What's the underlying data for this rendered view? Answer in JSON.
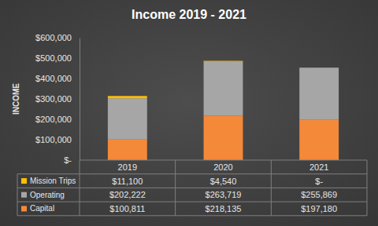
{
  "chart_data": {
    "type": "bar",
    "title": "Income 2019 - 2021",
    "y_label": "INCOME",
    "categories": [
      "2019",
      "2020",
      "2021"
    ],
    "stacked": true,
    "grid": false,
    "series": [
      {
        "name": "Capital",
        "color": "#f5893a",
        "values": [
          100811,
          218135,
          197180
        ],
        "value_labels": [
          "$100,811",
          "$218,135",
          "$197,180"
        ]
      },
      {
        "name": "Operating",
        "color": "#a6a6a6",
        "values": [
          202222,
          263719,
          255869
        ],
        "value_labels": [
          "$202,222",
          "$263,719",
          "$255,869"
        ]
      },
      {
        "name": "Mission Trips",
        "color": "#ffc000",
        "values": [
          11100,
          4540,
          0
        ],
        "value_labels": [
          "$11,100",
          "$4,540",
          "$-"
        ]
      }
    ],
    "ylim": [
      0,
      600000
    ],
    "yticks": [
      {
        "value": 0,
        "label": "$-"
      },
      {
        "value": 100000,
        "label": "$100,000"
      },
      {
        "value": 200000,
        "label": "$200,000"
      },
      {
        "value": 300000,
        "label": "$300,000"
      },
      {
        "value": 400000,
        "label": "$400,000"
      },
      {
        "value": 500000,
        "label": "$500,000"
      },
      {
        "value": 600000,
        "label": "$600,000"
      }
    ]
  }
}
